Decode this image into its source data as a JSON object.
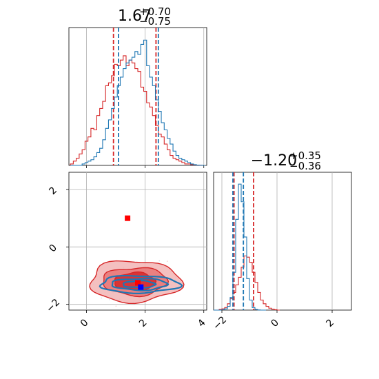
{
  "chart_data": [
    {
      "panel": "marginal-x",
      "type": "histogram",
      "title_main": "1.67",
      "title_sup": "+0.70",
      "title_sub": "−0.75",
      "xlim": [
        -0.6,
        4.1
      ],
      "xticks": [
        0,
        2,
        4
      ],
      "grid": true,
      "series": [
        {
          "color": "#d62728",
          "bins": [
            -0.55,
            -0.45,
            -0.35,
            -0.25,
            -0.15,
            -0.05,
            0.05,
            0.15,
            0.25,
            0.35,
            0.45,
            0.55,
            0.65,
            0.75,
            0.85,
            0.95,
            1.05,
            1.15,
            1.25,
            1.35,
            1.45,
            1.55,
            1.65,
            1.75,
            1.85,
            1.95,
            2.05,
            2.15,
            2.25,
            2.35,
            2.45,
            2.55,
            2.65,
            2.75,
            2.85,
            2.95,
            3.05,
            3.15,
            3.25,
            3.35,
            3.45,
            3.55,
            3.65,
            3.75,
            3.85,
            3.95
          ],
          "counts": [
            0.01,
            0.03,
            0.05,
            0.08,
            0.11,
            0.17,
            0.2,
            0.26,
            0.25,
            0.35,
            0.4,
            0.45,
            0.56,
            0.58,
            0.63,
            0.71,
            0.7,
            0.74,
            0.77,
            0.7,
            0.74,
            0.72,
            0.68,
            0.66,
            0.55,
            0.52,
            0.44,
            0.41,
            0.35,
            0.28,
            0.22,
            0.2,
            0.15,
            0.11,
            0.07,
            0.05,
            0.04,
            0.03,
            0.02,
            0.01,
            0.01,
            0.005,
            0.003,
            0.002,
            0.001,
            0.0
          ],
          "quantiles": [
            0.92,
            2.37
          ]
        },
        {
          "color": "#1f77b4",
          "bins": [
            -0.55,
            -0.45,
            -0.35,
            -0.25,
            -0.15,
            -0.05,
            0.05,
            0.15,
            0.25,
            0.35,
            0.45,
            0.55,
            0.65,
            0.75,
            0.85,
            0.95,
            1.05,
            1.15,
            1.25,
            1.35,
            1.45,
            1.55,
            1.65,
            1.75,
            1.85,
            1.95,
            2.05,
            2.15,
            2.25,
            2.35,
            2.45,
            2.55,
            2.65,
            2.75,
            2.85,
            2.95,
            3.05,
            3.15,
            3.25,
            3.35,
            3.45,
            3.55,
            3.65,
            3.75,
            3.85,
            3.95
          ],
          "counts": [
            0.0,
            0.0,
            0.0,
            0.0,
            0.01,
            0.02,
            0.03,
            0.04,
            0.06,
            0.09,
            0.12,
            0.18,
            0.26,
            0.32,
            0.4,
            0.48,
            0.56,
            0.62,
            0.68,
            0.72,
            0.74,
            0.76,
            0.8,
            0.78,
            0.85,
            0.88,
            0.7,
            0.62,
            0.56,
            0.46,
            0.38,
            0.3,
            0.25,
            0.19,
            0.15,
            0.1,
            0.07,
            0.05,
            0.04,
            0.03,
            0.02,
            0.01,
            0.005,
            0.002,
            0.001,
            0.0
          ],
          "quantiles": [
            1.09,
            2.45
          ]
        }
      ]
    },
    {
      "panel": "joint",
      "type": "contour",
      "xlim": [
        -0.6,
        4.1
      ],
      "ylim": [
        -2.2,
        2.6
      ],
      "xticks": [
        0,
        2,
        4
      ],
      "yticks": [
        -2,
        0,
        2
      ],
      "grid": true,
      "markers": [
        {
          "x": 1.4,
          "y": 1.0,
          "color": "#ff0000"
        },
        {
          "x": 1.75,
          "y": -1.25,
          "color": "#ff0000"
        },
        {
          "x": 1.85,
          "y": -1.4,
          "color": "#0000ff"
        }
      ],
      "series": [
        {
          "color": "#d62728",
          "center": [
            1.65,
            -1.2
          ],
          "levels": [
            [
              1.55,
              0.72
            ],
            [
              1.1,
              0.48
            ],
            [
              0.7,
              0.3
            ]
          ],
          "filled": true
        },
        {
          "color": "#1f77b4",
          "center": [
            1.8,
            -1.3
          ],
          "levels": [
            [
              1.35,
              0.3
            ],
            [
              0.95,
              0.2
            ],
            [
              0.55,
              0.12
            ]
          ],
          "filled": false
        }
      ]
    },
    {
      "panel": "marginal-y",
      "type": "histogram",
      "title_main": "−1.20",
      "title_sup": "+0.35",
      "title_sub": "−0.36",
      "xlim": [
        -2.3,
        2.7
      ],
      "xticks": [
        -2,
        0,
        2
      ],
      "grid": true,
      "series": [
        {
          "color": "#d62728",
          "bins": [
            -2.3,
            -2.2,
            -2.1,
            -2.0,
            -1.9,
            -1.8,
            -1.7,
            -1.6,
            -1.5,
            -1.4,
            -1.3,
            -1.2,
            -1.1,
            -1.0,
            -0.9,
            -0.8,
            -0.7,
            -0.6,
            -0.5,
            -0.4,
            -0.3,
            -0.2,
            -0.1,
            0.0
          ],
          "counts": [
            0.0,
            0.0,
            0.005,
            0.01,
            0.02,
            0.05,
            0.09,
            0.14,
            0.2,
            0.26,
            0.34,
            0.43,
            0.42,
            0.38,
            0.3,
            0.22,
            0.14,
            0.08,
            0.05,
            0.03,
            0.015,
            0.008,
            0.003,
            0.0
          ],
          "quantiles": [
            -1.56,
            -0.85
          ]
        },
        {
          "color": "#1f77b4",
          "bins": [
            -2.3,
            -2.2,
            -2.1,
            -2.0,
            -1.9,
            -1.8,
            -1.7,
            -1.6,
            -1.5,
            -1.4,
            -1.3,
            -1.2,
            -1.1,
            -1.0,
            -0.9,
            -0.8,
            -0.7,
            -0.6,
            -0.5
          ],
          "counts": [
            0.0,
            0.0,
            0.0,
            0.003,
            0.01,
            0.03,
            0.1,
            0.3,
            0.72,
            1.0,
            0.86,
            0.58,
            0.25,
            0.08,
            0.02,
            0.005,
            0.001,
            0.0,
            0.0
          ],
          "quantiles": [
            -1.6,
            -1.22
          ]
        }
      ]
    }
  ]
}
